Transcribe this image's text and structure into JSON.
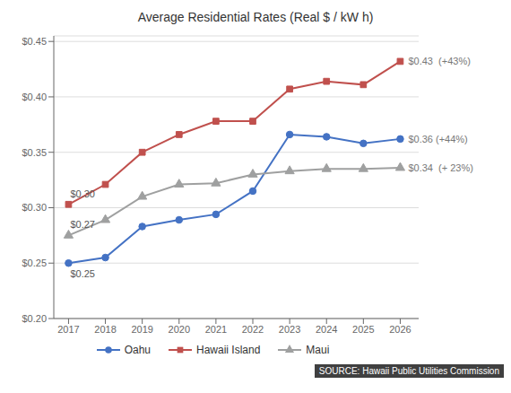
{
  "chart_data": {
    "type": "line",
    "title": "Average Residential Rates (Real $ / kW h)",
    "x": [
      2017,
      2018,
      2019,
      2020,
      2021,
      2022,
      2023,
      2024,
      2025,
      2026
    ],
    "series": [
      {
        "name": "Oahu",
        "color": "#4472c4",
        "marker": "circle",
        "values": [
          0.25,
          0.255,
          0.283,
          0.289,
          0.294,
          0.315,
          0.366,
          0.364,
          0.358,
          0.362
        ]
      },
      {
        "name": "Hawaii Island",
        "color": "#c0504d",
        "marker": "square",
        "values": [
          0.303,
          0.321,
          0.35,
          0.366,
          0.378,
          0.378,
          0.407,
          0.414,
          0.411,
          0.432
        ]
      },
      {
        "name": "Maui",
        "color": "#9fa0a0",
        "marker": "triangle",
        "values": [
          0.275,
          0.289,
          0.31,
          0.321,
          0.322,
          0.33,
          0.333,
          0.335,
          0.335,
          0.336
        ]
      }
    ],
    "xlim": [
      2016.6,
      2026.5
    ],
    "xticks": [
      2017,
      2018,
      2019,
      2020,
      2021,
      2022,
      2023,
      2024,
      2025,
      2026
    ],
    "ylim": [
      0.2,
      0.455
    ],
    "yticks": [
      {
        "value": 0.2,
        "label": "$0.20"
      },
      {
        "value": 0.25,
        "label": "$0.25"
      },
      {
        "value": 0.3,
        "label": "$0.30"
      },
      {
        "value": 0.35,
        "label": "$0.35"
      },
      {
        "value": 0.4,
        "label": "$0.40"
      },
      {
        "value": 0.45,
        "label": "$0.45"
      }
    ],
    "grid": true,
    "legend": "bottom",
    "annotations": [
      {
        "text": "$0.25",
        "x": 2017,
        "y": 0.25
      },
      {
        "text": "$0.30",
        "x": 2017,
        "y": 0.303
      },
      {
        "text": "$0.27",
        "x": 2017,
        "y": 0.275
      },
      {
        "text": "$0.43  (+43%)",
        "x": 2026,
        "y": 0.432
      },
      {
        "text": "$0.36 (+44%)",
        "x": 2026,
        "y": 0.362
      },
      {
        "text": "$0.34  (+ 23%)",
        "x": 2026,
        "y": 0.336
      }
    ],
    "source": "SOURCE: Hawaii Public Utilities Commission"
  }
}
